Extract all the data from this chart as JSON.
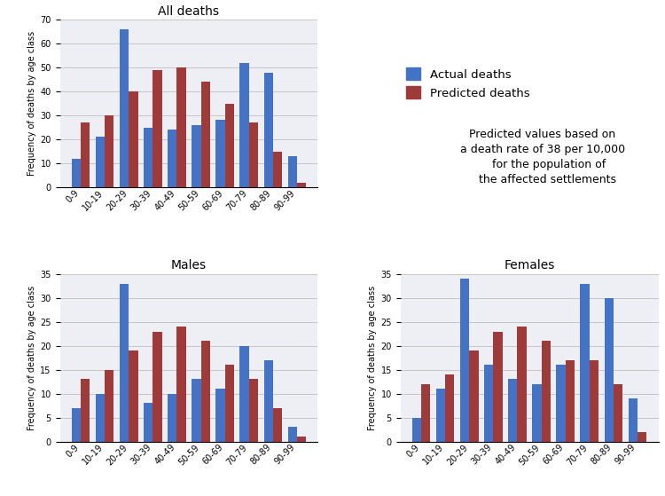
{
  "age_classes": [
    "0-9",
    "10-19",
    "20-29",
    "30-39",
    "40-49",
    "50-59",
    "60-69",
    "70-79",
    "80-89",
    "90-99"
  ],
  "all_actual": [
    12,
    21,
    66,
    25,
    24,
    26,
    28,
    52,
    48,
    13
  ],
  "all_predicted": [
    27,
    30,
    40,
    49,
    50,
    44,
    35,
    27,
    15,
    2
  ],
  "male_actual": [
    7,
    10,
    33,
    8,
    10,
    13,
    11,
    20,
    17,
    3
  ],
  "male_predicted": [
    13,
    15,
    19,
    23,
    24,
    21,
    16,
    13,
    7,
    1
  ],
  "female_actual": [
    5,
    11,
    34,
    16,
    13,
    12,
    16,
    33,
    30,
    9
  ],
  "female_predicted": [
    12,
    14,
    19,
    23,
    24,
    21,
    17,
    17,
    12,
    2
  ],
  "color_actual": "#4472C4",
  "color_predicted": "#9E3A3A",
  "ylabel": "Frequency of deaths by age class",
  "title_all": "All deaths",
  "title_male": "Males",
  "title_female": "Females",
  "legend_actual": "Actual deaths",
  "legend_predicted": "Predicted deaths",
  "note": "Predicted values based on\na death rate of 38 per 10,000\n    for the population of\n   the affected settlements",
  "ylim_all": [
    0,
    70
  ],
  "ylim_sub": [
    0,
    35
  ],
  "yticks_all": [
    0,
    10,
    20,
    30,
    40,
    50,
    60,
    70
  ],
  "yticks_sub": [
    0,
    5,
    10,
    15,
    20,
    25,
    30,
    35
  ],
  "bg_color": "#E8E8F0"
}
